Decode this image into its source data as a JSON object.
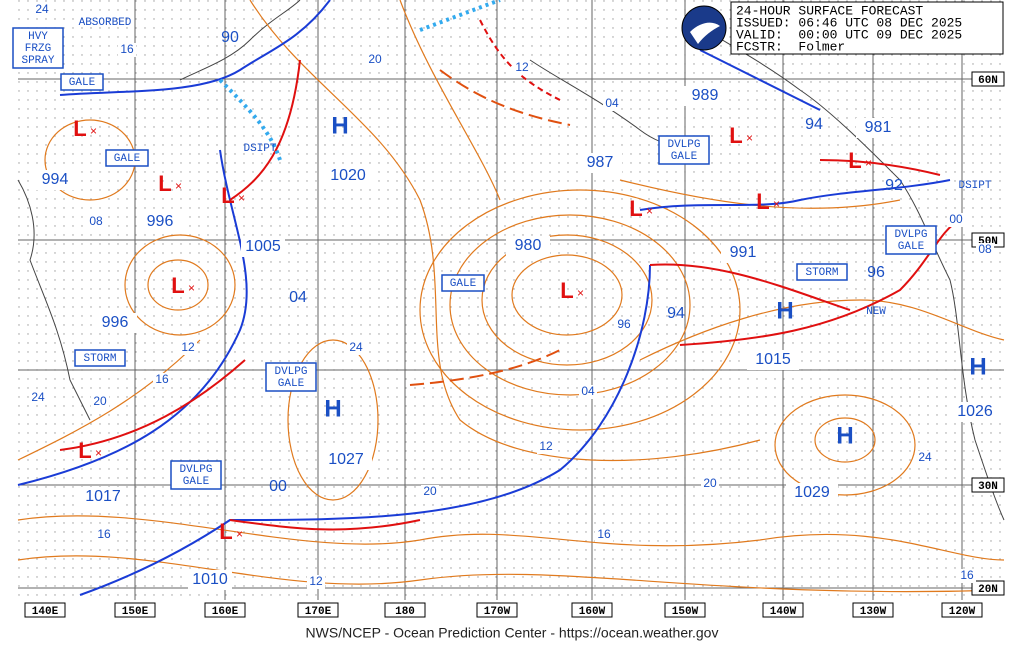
{
  "header": {
    "lines": [
      "24-HOUR SURFACE FORECAST",
      "ISSUED: 06:46 UTC 08 DEC 2025",
      "VALID:  00:00 UTC 09 DEC 2025",
      "FCSTR:  Folmer"
    ]
  },
  "footer": "NWS/NCEP - Ocean Prediction Center - https://ocean.weather.gov",
  "longitude_labels": [
    "140E",
    "150E",
    "160E",
    "170E",
    "180",
    "170W",
    "160W",
    "150W",
    "140W",
    "130W",
    "120W"
  ],
  "latitude_labels": [
    "60N",
    "50N",
    "30N",
    "20N"
  ],
  "highs": [
    {
      "symbol": "H",
      "pressure": "1020"
    },
    {
      "symbol": "H",
      "pressure": "1027"
    },
    {
      "symbol": "H",
      "pressure": "1015"
    },
    {
      "symbol": "H",
      "pressure": "1029"
    },
    {
      "symbol": "H",
      "pressure": "1026"
    }
  ],
  "lows": [
    {
      "symbol": "L",
      "pressure": "994"
    },
    {
      "symbol": "L",
      "pressure": "996"
    },
    {
      "symbol": "L",
      "pressure": "1005"
    },
    {
      "symbol": "L",
      "pressure": "996"
    },
    {
      "symbol": "L",
      "pressure": "1017"
    },
    {
      "symbol": "L",
      "pressure": "1010"
    },
    {
      "symbol": "L",
      "pressure": "980"
    },
    {
      "symbol": "L",
      "pressure": "987"
    },
    {
      "symbol": "L",
      "pressure": "989"
    },
    {
      "symbol": "L",
      "pressure": "991"
    },
    {
      "symbol": "L",
      "pressure": "981"
    }
  ],
  "pressure_labels": [
    "90",
    "94",
    "94",
    "96",
    "92",
    "04",
    "00"
  ],
  "warning_labels": [
    {
      "lines": [
        "HVY",
        "FRZG",
        "SPRAY"
      ]
    },
    {
      "lines": [
        "GALE"
      ]
    },
    {
      "lines": [
        "GALE"
      ]
    },
    {
      "lines": [
        "STORM"
      ]
    },
    {
      "lines": [
        "DVLPG",
        "GALE"
      ]
    },
    {
      "lines": [
        "DVLPG",
        "GALE"
      ]
    },
    {
      "lines": [
        "GALE"
      ]
    },
    {
      "lines": [
        "DVLPG",
        "GALE"
      ]
    },
    {
      "lines": [
        "STORM"
      ]
    },
    {
      "lines": [
        "DVLPG",
        "GALE"
      ]
    }
  ],
  "annotations": [
    "ABSORBED",
    "DSIPT",
    "DSIPT",
    "NEW"
  ],
  "isobar_labels": [
    "24",
    "16",
    "20",
    "12",
    "04",
    "08",
    "12",
    "16",
    "20",
    "24",
    "24",
    "16",
    "12",
    "20",
    "04",
    "96",
    "12",
    "20",
    "16",
    "24",
    "16",
    "00",
    "08"
  ]
}
